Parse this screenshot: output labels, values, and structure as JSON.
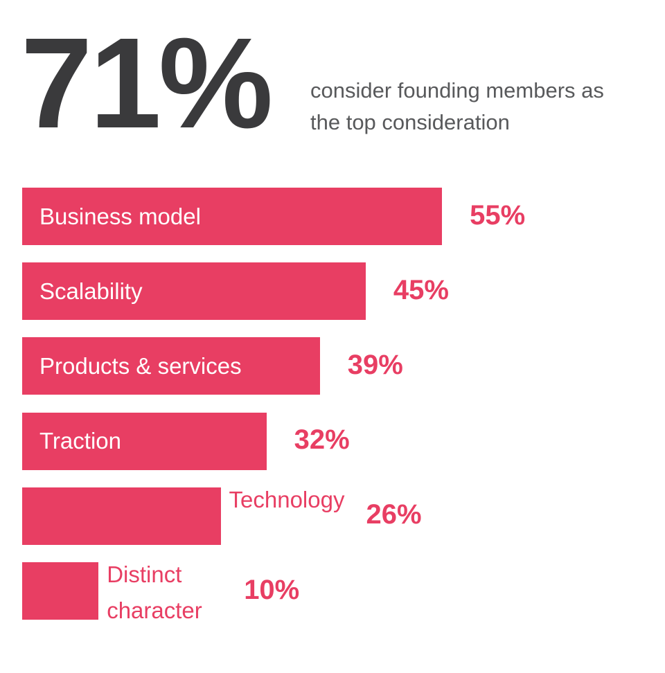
{
  "chart_data": {
    "type": "bar",
    "orientation": "horizontal",
    "headline": "71%",
    "subtitle": "consider founding members as the top consideration",
    "categories": [
      "Business model",
      "Scalability",
      "Products & services",
      "Traction",
      "Technology",
      "Distinct character"
    ],
    "values": [
      55,
      45,
      39,
      32,
      26,
      10
    ],
    "value_labels": [
      "55%",
      "45%",
      "39%",
      "32%",
      "26%",
      "10%"
    ],
    "color": "#e83e63"
  }
}
